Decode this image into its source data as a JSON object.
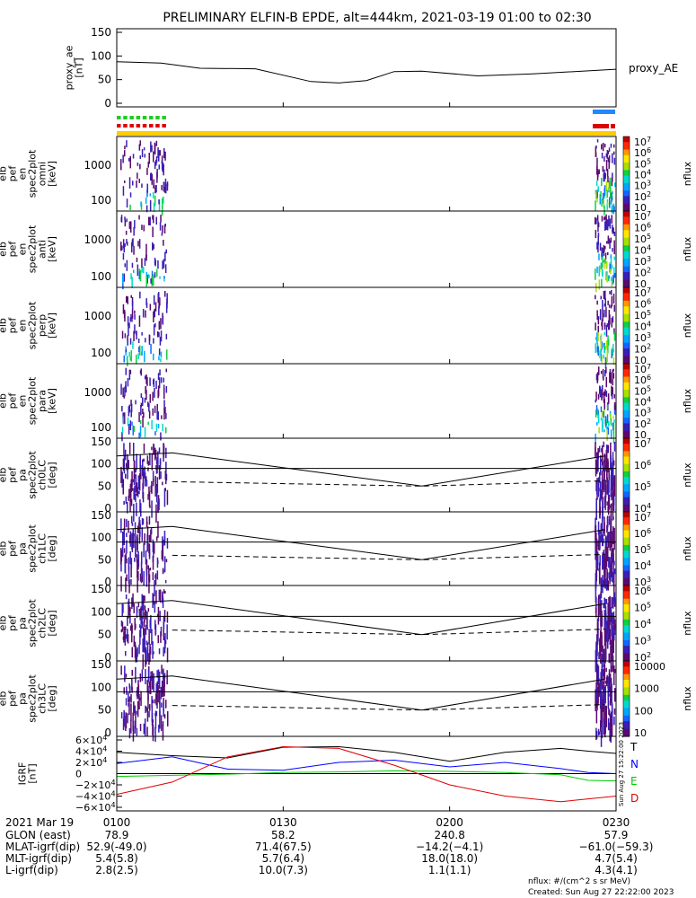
{
  "title": "PRELIMINARY ELFIN-B EPDE, alt=444km, 2021-03-19 01:00 to 02:30",
  "colors": {
    "epd_bar": "#ffcc00",
    "green_marker": "#22cc22",
    "red_marker": "#dd0000",
    "blue_marker": "#2288ff",
    "T": "#000000",
    "N": "#0000ff",
    "E": "#00cc00",
    "D": "#dd0000"
  },
  "chart_data": [
    {
      "type": "line",
      "panel": "proxy_ae",
      "ylabel": "proxy_ae [nT]",
      "yticks": [
        "150",
        "100",
        "50",
        "0"
      ],
      "ylim": [
        0,
        150
      ],
      "legend": "proxy_AE",
      "x_minutes": [
        0,
        8,
        15,
        25,
        35,
        40,
        45,
        50,
        55,
        65,
        75,
        90
      ],
      "values": [
        88,
        85,
        74,
        73,
        46,
        43,
        48,
        67,
        68,
        58,
        62,
        72
      ]
    },
    {
      "type": "heatmap",
      "panel": "omni",
      "ylabel": "elb pef en spec2plot omni [keV]",
      "yticks": [
        "1000",
        "100"
      ],
      "colorbar_label": "nflux",
      "colorbar_ticks": [
        "10^7",
        "10^6",
        "10^5",
        "10^4",
        "10^3",
        "10^2",
        "10"
      ]
    },
    {
      "type": "heatmap",
      "panel": "anti",
      "ylabel": "elb pef en spec2plot anti [keV]",
      "yticks": [
        "1000",
        "100"
      ],
      "colorbar_label": "nflux",
      "colorbar_ticks": [
        "10^7",
        "10^6",
        "10^5",
        "10^4",
        "10^3",
        "10^2",
        "10"
      ]
    },
    {
      "type": "heatmap",
      "panel": "perp",
      "ylabel": "elb pef en spec2plot perp [keV]",
      "yticks": [
        "1000",
        "100"
      ],
      "colorbar_label": "nflux",
      "colorbar_ticks": [
        "10^7",
        "10^6",
        "10^5",
        "10^4",
        "10^3",
        "10^2",
        "10"
      ]
    },
    {
      "type": "heatmap",
      "panel": "para",
      "ylabel": "elb pef en spec2plot para [keV]",
      "yticks": [
        "1000",
        "100"
      ],
      "colorbar_label": "nflux",
      "colorbar_ticks": [
        "10^7",
        "10^6",
        "10^5",
        "10^4",
        "10^3",
        "10^2",
        "10"
      ]
    },
    {
      "type": "heatmap",
      "panel": "ch0LC",
      "ylabel": "elb pef pa spec2plot ch0LC [deg]",
      "yticks": [
        "150",
        "100",
        "50",
        "0"
      ],
      "colorbar_label": "nflux",
      "colorbar_ticks": [
        "10^7",
        "10^6",
        "10^5",
        "10^4"
      ]
    },
    {
      "type": "heatmap",
      "panel": "ch1LC",
      "ylabel": "elb pef pa spec2plot ch1LC [deg]",
      "yticks": [
        "150",
        "100",
        "50",
        "0"
      ],
      "colorbar_label": "nflux",
      "colorbar_ticks": [
        "10^7",
        "10^6",
        "10^5",
        "10^4",
        "10^3"
      ]
    },
    {
      "type": "heatmap",
      "panel": "ch2LC",
      "ylabel": "elb pef pa spec2plot ch2LC [deg]",
      "yticks": [
        "150",
        "100",
        "50",
        "0"
      ],
      "colorbar_label": "nflux",
      "colorbar_ticks": [
        "10^6",
        "10^5",
        "10^4",
        "10^3",
        "10^2"
      ]
    },
    {
      "type": "heatmap",
      "panel": "ch3LC",
      "ylabel": "elb pef pa spec2plot ch3LC [deg]",
      "yticks": [
        "150",
        "100",
        "50",
        "0"
      ],
      "colorbar_label": "nflux",
      "colorbar_ticks": [
        "10000",
        "1000",
        "100",
        "10"
      ]
    },
    {
      "type": "line",
      "panel": "igrf",
      "ylabel": "IGRF [nT]",
      "yticks": [
        "6×10^4",
        "4×10^4",
        "2×10^4",
        "0",
        "−2×10^4",
        "−4×10^4",
        "−6×10^4"
      ],
      "ylim": [
        -60000,
        60000
      ],
      "legend": [
        "T",
        "N",
        "E",
        "D"
      ],
      "x_minutes": [
        0,
        10,
        20,
        30,
        40,
        50,
        60,
        70,
        80,
        85,
        90
      ],
      "series": [
        {
          "name": "T",
          "values": [
            38000,
            32000,
            28000,
            47000,
            48000,
            38000,
            22000,
            38000,
            45000,
            40000,
            36000
          ]
        },
        {
          "name": "N",
          "values": [
            18000,
            30000,
            8000,
            6000,
            20000,
            24000,
            12000,
            20000,
            9000,
            2000,
            0
          ]
        },
        {
          "name": "E",
          "values": [
            -5000,
            -3000,
            -1000,
            2000,
            3000,
            5000,
            4000,
            2000,
            -2000,
            -12000,
            -13000
          ]
        },
        {
          "name": "D",
          "values": [
            -37000,
            -15000,
            30000,
            48000,
            45000,
            15000,
            -20000,
            -40000,
            -50000,
            -45000,
            -40000
          ]
        }
      ]
    }
  ],
  "orbit": {
    "date": "2021 Mar 19",
    "times": [
      "0100",
      "0130",
      "0200",
      "0230"
    ],
    "rows": [
      {
        "label": "GLON (east)",
        "values": [
          "78.9",
          "58.2",
          "240.8",
          "57.9"
        ]
      },
      {
        "label": "MLAT-igrf(dip)",
        "values": [
          "52.9(-49.0)",
          "71.4(67.5)",
          "−14.2(−4.1)",
          "−61.0(−59.3)"
        ]
      },
      {
        "label": "MLT-igrf(dip)",
        "values": [
          "5.4(5.8)",
          "5.7(6.4)",
          "18.0(18.0)",
          "4.7(5.4)"
        ]
      },
      {
        "label": "L-igrf(dip)",
        "values": [
          "2.8(2.5)",
          "10.0(7.3)",
          "1.1(1.1)",
          "4.3(4.1)"
        ]
      }
    ]
  },
  "side_stamp": "Sun Aug 27 15:22:00 2023",
  "footer": {
    "units": "nflux: #/(cm^2 s sr MeV)",
    "created": "Created: Sun Aug 27 22:22:00 2023"
  }
}
